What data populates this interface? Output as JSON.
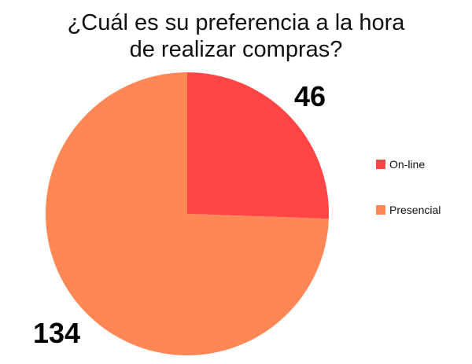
{
  "chart_data": {
    "type": "pie",
    "title_lines": [
      "¿Cuál es su preferencia a la hora",
      "de realizar compras?"
    ],
    "slices": [
      {
        "name": "On-line",
        "value": 46,
        "label": "46",
        "color": "#ff4545"
      },
      {
        "name": "Presencial",
        "value": 134,
        "label": "134",
        "color": "#ff8655"
      }
    ],
    "legend": [
      "On-line",
      "Presencial"
    ],
    "legend_position": "right",
    "start_angle": "12 o'clock",
    "direction": "clockwise"
  }
}
